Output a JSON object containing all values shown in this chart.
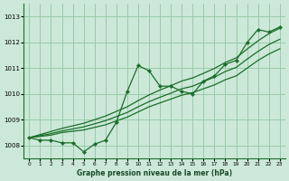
{
  "xlabel": "Graphe pression niveau de la mer (hPa)",
  "bg_color": "#cce8d8",
  "grid_color": "#99ccaa",
  "line_color": "#1a6e2a",
  "xlim": [
    -0.5,
    23.5
  ],
  "ylim": [
    1007.5,
    1013.5
  ],
  "yticks": [
    1008,
    1009,
    1010,
    1011,
    1012,
    1013
  ],
  "xticks": [
    0,
    1,
    2,
    3,
    4,
    5,
    6,
    7,
    8,
    9,
    10,
    11,
    12,
    13,
    14,
    15,
    16,
    17,
    18,
    19,
    20,
    21,
    22,
    23
  ],
  "series_jagged": [
    1008.3,
    1008.2,
    1008.2,
    1008.1,
    1008.1,
    1007.75,
    1008.05,
    1008.2,
    1008.9,
    1010.1,
    1011.1,
    1010.9,
    1010.3,
    1010.3,
    1010.1,
    1010.0,
    1010.5,
    1010.7,
    1011.15,
    1011.3,
    1012.0,
    1012.5,
    1012.4,
    1012.6
  ],
  "series_smooth1": [
    1008.3,
    1008.35,
    1008.4,
    1008.5,
    1008.55,
    1008.6,
    1008.7,
    1008.8,
    1008.95,
    1009.1,
    1009.3,
    1009.5,
    1009.65,
    1009.8,
    1009.95,
    1010.05,
    1010.2,
    1010.35,
    1010.55,
    1010.7,
    1011.0,
    1011.3,
    1011.55,
    1011.75
  ],
  "series_smooth2": [
    1008.3,
    1008.38,
    1008.46,
    1008.56,
    1008.64,
    1008.72,
    1008.84,
    1008.96,
    1009.12,
    1009.28,
    1009.5,
    1009.7,
    1009.87,
    1010.03,
    1010.2,
    1010.3,
    1010.48,
    1010.65,
    1010.87,
    1011.03,
    1011.35,
    1011.65,
    1011.92,
    1012.12
  ],
  "series_smooth3": [
    1008.3,
    1008.42,
    1008.54,
    1008.66,
    1008.76,
    1008.86,
    1009.0,
    1009.14,
    1009.32,
    1009.5,
    1009.74,
    1009.96,
    1010.15,
    1010.32,
    1010.5,
    1010.62,
    1010.8,
    1010.99,
    1011.22,
    1011.4,
    1011.74,
    1012.06,
    1012.34,
    1012.55
  ]
}
